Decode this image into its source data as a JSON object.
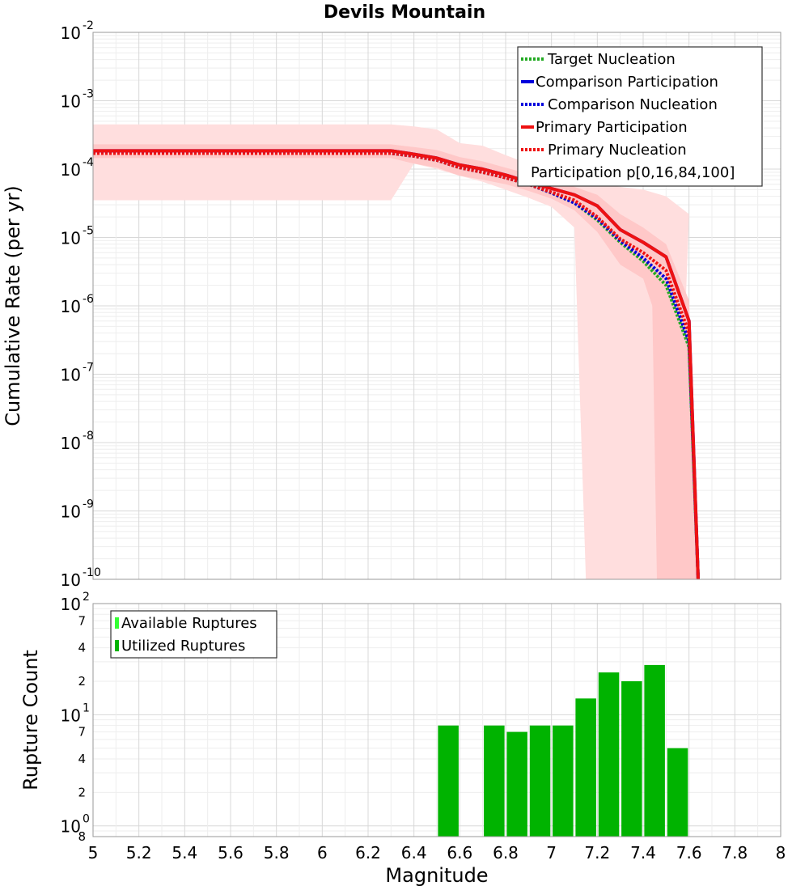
{
  "chart_data": [
    {
      "type": "line",
      "title": "Devils Mountain",
      "xlabel": "Magnitude",
      "ylabel": "Cumulative Rate (per yr)",
      "xlim": [
        5,
        8
      ],
      "ylim": [
        1e-10,
        0.01
      ],
      "y_scale": "log",
      "x_ticks": [
        "5",
        "5.2",
        "5.4",
        "5.6",
        "5.8",
        "6",
        "6.2",
        "6.4",
        "6.6",
        "6.8",
        "7",
        "7.2",
        "7.4",
        "7.6",
        "7.8",
        "8"
      ],
      "y_tick_bases": [
        "10",
        "10",
        "10",
        "10",
        "10",
        "10",
        "10",
        "10",
        "10"
      ],
      "y_tick_exponents": [
        "-10",
        "-9",
        "-8",
        "-7",
        "-6",
        "-5",
        "-4",
        "-3",
        "-2"
      ],
      "grid": true,
      "legend_position": "top-right",
      "legend": [
        "Target Nucleation",
        "Comparison Participation",
        "Comparison Nucleation",
        "Primary Participation",
        "Primary Nucleation",
        "Participation p[0,16,84,100]"
      ],
      "colors": {
        "target_nucleation": "#22aa22",
        "comparison": "#0000dd",
        "primary": "#ee1111",
        "band_outer": "#ffdede",
        "band_inner": "#ffc8c8"
      },
      "series": [
        {
          "name": "Target Nucleation",
          "style": "dotted",
          "x": [
            5.0,
            6.3,
            6.4,
            6.5,
            6.6,
            6.7,
            6.8,
            6.9,
            7.0,
            7.1,
            7.2,
            7.3,
            7.4,
            7.5,
            7.6,
            7.64
          ],
          "y": [
            0.00017,
            0.00017,
            0.000155,
            0.000135,
            0.000105,
            9e-05,
            7.5e-05,
            6e-05,
            4.5e-05,
            3.2e-05,
            1.8e-05,
            8.5e-06,
            4.5e-06,
            2e-06,
            2.5e-07,
            1e-10
          ]
        },
        {
          "name": "Comparison Nucleation",
          "style": "dotted",
          "x": [
            5.0,
            6.3,
            6.4,
            6.5,
            6.6,
            6.7,
            6.8,
            6.9,
            7.0,
            7.1,
            7.2,
            7.3,
            7.4,
            7.5,
            7.6,
            7.64
          ],
          "y": [
            0.00017,
            0.00017,
            0.000155,
            0.000135,
            0.000105,
            9e-05,
            7.5e-05,
            6e-05,
            4.5e-05,
            3.2e-05,
            1.9e-05,
            9e-06,
            5e-06,
            2.5e-06,
            3e-07,
            1e-10
          ]
        },
        {
          "name": "Primary Nucleation",
          "style": "dotted",
          "x": [
            5.0,
            6.3,
            6.4,
            6.5,
            6.6,
            6.7,
            6.8,
            6.9,
            7.0,
            7.1,
            7.2,
            7.3,
            7.4,
            7.5,
            7.6,
            7.64
          ],
          "y": [
            0.00017,
            0.00017,
            0.000155,
            0.000135,
            0.000105,
            9e-05,
            7.5e-05,
            6e-05,
            4.6e-05,
            3.5e-05,
            2e-05,
            9.5e-06,
            6e-06,
            3.3e-06,
            4e-07,
            1e-10
          ]
        },
        {
          "name": "Comparison Participation",
          "style": "solid",
          "x": [
            5.0,
            6.3,
            6.4,
            6.5,
            6.6,
            6.7,
            6.8,
            6.9,
            7.0,
            7.1,
            7.2,
            7.3,
            7.4,
            7.5,
            7.6,
            7.64
          ],
          "y": [
            0.000185,
            0.000185,
            0.000165,
            0.000145,
            0.000115,
            0.0001,
            8.2e-05,
            6.5e-05,
            5.2e-05,
            4.2e-05,
            2.9e-05,
            1.3e-05,
            8.5e-06,
            5.2e-06,
            6e-07,
            1e-10
          ]
        },
        {
          "name": "Primary Participation",
          "style": "solid",
          "x": [
            5.0,
            6.3,
            6.4,
            6.5,
            6.6,
            6.7,
            6.8,
            6.9,
            7.0,
            7.1,
            7.2,
            7.3,
            7.4,
            7.5,
            7.6,
            7.64
          ],
          "y": [
            0.000185,
            0.000185,
            0.000165,
            0.000145,
            0.000115,
            0.0001,
            8.2e-05,
            6.5e-05,
            5.2e-05,
            4.2e-05,
            2.9e-05,
            1.3e-05,
            8.5e-06,
            5.2e-06,
            6e-07,
            1e-10
          ]
        }
      ],
      "bands": [
        {
          "name": "Participation p[0,100]",
          "x": [
            5.0,
            6.3,
            6.4,
            6.5,
            6.6,
            6.7,
            6.8,
            6.9,
            7.0,
            7.1,
            7.2,
            7.3,
            7.4,
            7.5,
            7.6,
            7.54,
            7.44,
            7.4,
            7.3,
            7.2,
            7.15,
            7.1,
            7.0,
            6.9,
            6.8,
            6.7,
            6.6,
            6.5,
            6.4,
            6.3,
            5.0
          ],
          "y": [
            0.00045,
            0.00045,
            0.00042,
            0.00038,
            0.00024,
            0.00022,
            0.00016,
            0.00012,
            9e-05,
            7e-05,
            6e-05,
            5.5e-05,
            5e-05,
            4e-05,
            2.2e-05,
            1e-10,
            1e-10,
            1e-10,
            1e-10,
            1e-10,
            1e-10,
            1.4e-05,
            2.8e-05,
            3.8e-05,
            5e-05,
            6.5e-05,
            8e-05,
            0.0001,
            0.00012,
            3.5e-05,
            3.5e-05
          ]
        },
        {
          "name": "Participation p[16,84]",
          "x": [
            5.0,
            6.3,
            6.4,
            6.5,
            6.6,
            6.7,
            6.8,
            6.9,
            7.0,
            7.1,
            7.2,
            7.3,
            7.4,
            7.5,
            7.6,
            7.64,
            7.54,
            7.46,
            7.44,
            7.4,
            7.3,
            7.2,
            7.1,
            7.0,
            6.9,
            6.8,
            6.7,
            6.6,
            6.5,
            6.4,
            6.3,
            5.0
          ],
          "y": [
            0.00023,
            0.00023,
            0.00021,
            0.00019,
            0.00015,
            0.00013,
            0.000105,
            8.5e-05,
            6.8e-05,
            5.5e-05,
            4.2e-05,
            2.2e-05,
            1.4e-05,
            8e-06,
            1.2e-06,
            1e-10,
            1e-10,
            1e-10,
            1e-06,
            2.5e-06,
            4e-06,
            1.2e-05,
            2.5e-05,
            3.7e-05,
            4.8e-05,
            6e-05,
            7e-05,
            8e-05,
            0.000105,
            0.00012,
            0.000145,
            0.000145
          ]
        }
      ]
    },
    {
      "type": "bar",
      "ylabel": "Rupture Count",
      "xlabel": "Magnitude",
      "xlim": [
        5,
        8
      ],
      "ylim": [
        0.8,
        100
      ],
      "y_scale": "log",
      "bar_width": 0.09,
      "x_ticks": [
        "5",
        "5.2",
        "5.4",
        "5.6",
        "5.8",
        "6",
        "6.2",
        "6.4",
        "6.6",
        "6.8",
        "7",
        "7.2",
        "7.4",
        "7.6",
        "7.8",
        "8"
      ],
      "y_major_ticks": [
        {
          "value": 1,
          "base": "10",
          "exp": "0"
        },
        {
          "value": 10,
          "base": "10",
          "exp": "1"
        },
        {
          "value": 100,
          "base": "10",
          "exp": "2"
        }
      ],
      "y_minor_ticks": [
        {
          "value": 0.8,
          "label": "8"
        },
        {
          "value": 2,
          "label": "2"
        },
        {
          "value": 4,
          "label": "4"
        },
        {
          "value": 7,
          "label": "7"
        },
        {
          "value": 20,
          "label": "2"
        },
        {
          "value": 40,
          "label": "4"
        },
        {
          "value": 70,
          "label": "7"
        }
      ],
      "grid": true,
      "legend_position": "top-left",
      "legend": [
        "Available Ruptures",
        "Utilized Ruptures"
      ],
      "colors": {
        "available": "#33ff33",
        "utilized": "#00b300"
      },
      "series": [
        {
          "name": "Utilized Ruptures",
          "x": [
            6.55,
            6.75,
            6.85,
            6.95,
            7.05,
            7.15,
            7.25,
            7.35,
            7.45,
            7.55
          ],
          "values": [
            8,
            8,
            7,
            8,
            8,
            14,
            24,
            20,
            28,
            5
          ]
        }
      ]
    }
  ]
}
